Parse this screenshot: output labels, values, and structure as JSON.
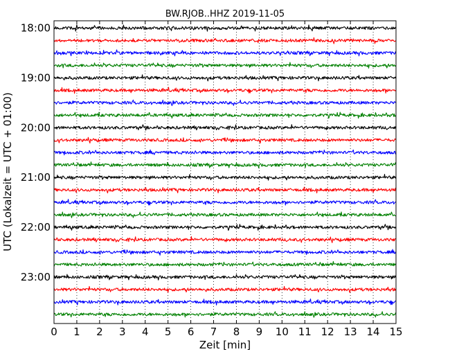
{
  "chart_data": {
    "type": "line",
    "title": "BW.RJOB..HHZ 2019-11-05",
    "xlabel": "Zeit  [min]",
    "ylabel": "UTC (Lokalzeit = UTC + 01:00)",
    "xlim": [
      0,
      15
    ],
    "x_ticks": [
      0,
      1,
      2,
      3,
      4,
      5,
      6,
      7,
      8,
      9,
      10,
      11,
      12,
      13,
      14,
      15
    ],
    "x_tick_labels": [
      "0",
      "1",
      "2",
      "3",
      "4",
      "5",
      "6",
      "7",
      "8",
      "9",
      "10",
      "11",
      "12",
      "13",
      "14",
      "15"
    ],
    "y_tick_labels": [
      "18:00",
      "19:00",
      "20:00",
      "21:00",
      "22:00",
      "23:00"
    ],
    "grid": "vertical dotted at each minute",
    "trace_minutes": 15,
    "colors": [
      "#000000",
      "#ff0000",
      "#0000ff",
      "#008000"
    ],
    "series": [
      {
        "start": "18:00",
        "color": "#000000"
      },
      {
        "start": "18:15",
        "color": "#ff0000"
      },
      {
        "start": "18:30",
        "color": "#0000ff"
      },
      {
        "start": "18:45",
        "color": "#008000"
      },
      {
        "start": "19:00",
        "color": "#000000"
      },
      {
        "start": "19:15",
        "color": "#ff0000"
      },
      {
        "start": "19:30",
        "color": "#0000ff"
      },
      {
        "start": "19:45",
        "color": "#008000"
      },
      {
        "start": "20:00",
        "color": "#000000"
      },
      {
        "start": "20:15",
        "color": "#ff0000"
      },
      {
        "start": "20:30",
        "color": "#0000ff"
      },
      {
        "start": "20:45",
        "color": "#008000"
      },
      {
        "start": "21:00",
        "color": "#000000"
      },
      {
        "start": "21:15",
        "color": "#ff0000"
      },
      {
        "start": "21:30",
        "color": "#0000ff"
      },
      {
        "start": "21:45",
        "color": "#008000"
      },
      {
        "start": "22:00",
        "color": "#000000"
      },
      {
        "start": "22:15",
        "color": "#ff0000"
      },
      {
        "start": "22:30",
        "color": "#0000ff"
      },
      {
        "start": "22:45",
        "color": "#008000"
      },
      {
        "start": "23:00",
        "color": "#000000"
      },
      {
        "start": "23:15",
        "color": "#ff0000"
      },
      {
        "start": "23:30",
        "color": "#0000ff"
      },
      {
        "start": "23:45",
        "color": "#008000"
      }
    ]
  }
}
